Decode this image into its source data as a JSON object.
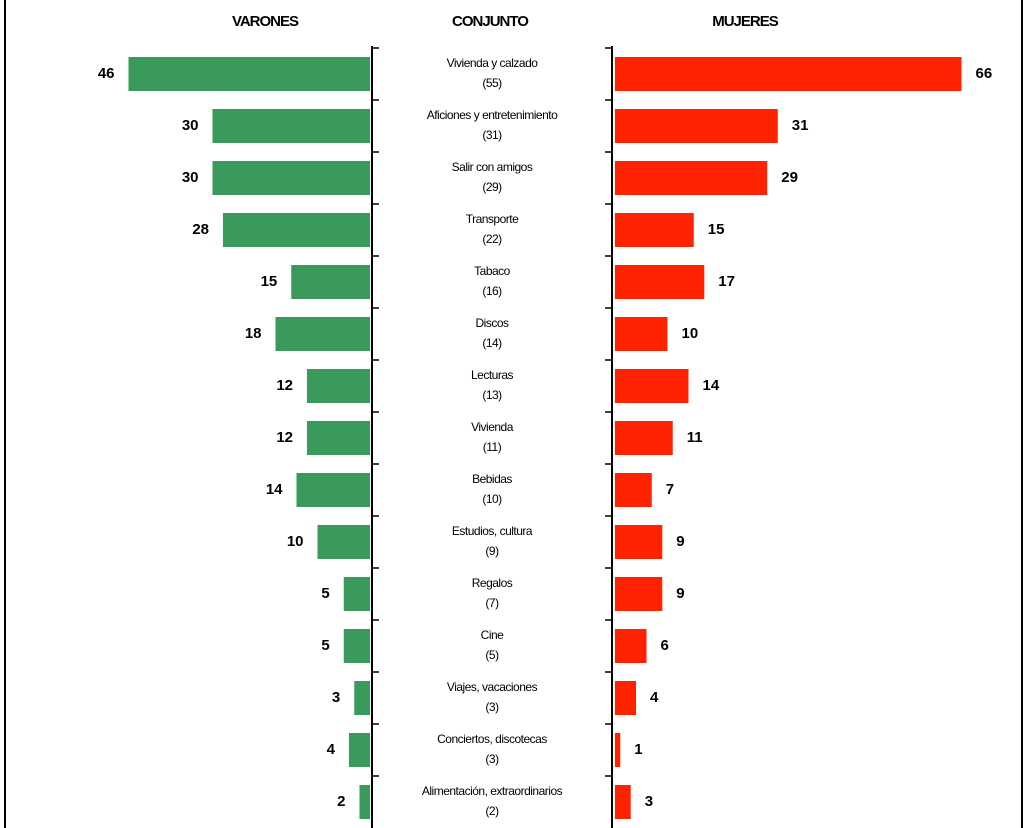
{
  "chart_data": {
    "type": "butterfly",
    "categories": [
      "Vivienda y calzado",
      "Aficiones y entretenimiento",
      "Salir con amigos",
      "Transporte",
      "Tabaco",
      "Discos",
      "Lecturas",
      "Vivienda",
      "Bebidas",
      "Estudios, cultura",
      "Regalos",
      "Cine",
      "Viajes, vacaciones",
      "Conciertos, discotecas",
      "Alimentación, extraordinarios"
    ],
    "series": [
      {
        "name": "VARONES",
        "color": "#3a9a5c",
        "values": [
          46,
          30,
          30,
          28,
          15,
          18,
          12,
          12,
          14,
          10,
          5,
          5,
          3,
          4,
          2
        ]
      },
      {
        "name": "CONJUNTO",
        "values": [
          55,
          31,
          29,
          22,
          16,
          14,
          13,
          11,
          10,
          9,
          7,
          5,
          3,
          3,
          2
        ],
        "value_labels": [
          "(55)",
          "(31)",
          "(29)",
          "(22)",
          "(16)",
          "(14)",
          "(13)",
          "(11)",
          "(10)",
          "(9)",
          "(7)",
          "(5)",
          "(3)",
          "(3)",
          "(2)"
        ]
      },
      {
        "name": "MUJERES",
        "color": "#ff2200",
        "values": [
          66,
          31,
          29,
          15,
          17,
          10,
          14,
          11,
          7,
          9,
          9,
          6,
          4,
          1,
          3
        ]
      }
    ]
  }
}
